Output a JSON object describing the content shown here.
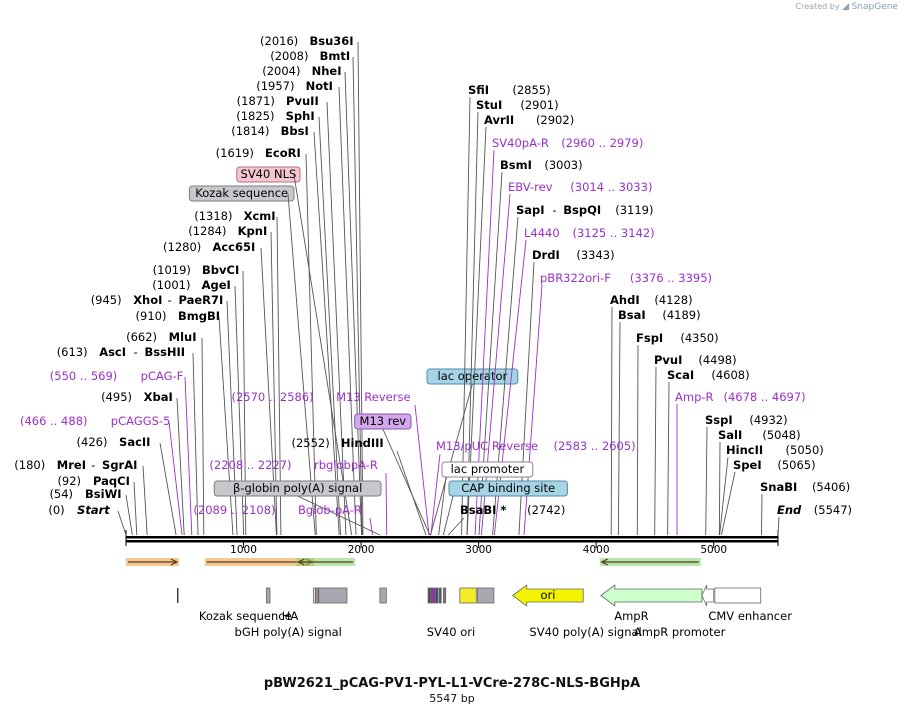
{
  "credit": {
    "prefix": "Created by",
    "brand": "SnapGene"
  },
  "map": {
    "name": "pBW2621_pCAG-PV1-PYL-L1-VCre-278C-NLS-BGHpA",
    "length_label": "5547 bp",
    "length": 5547,
    "ticks": [
      "1000",
      "2000",
      "3000",
      "4000",
      "5000"
    ],
    "tick_values": [
      1000,
      2000,
      3000,
      4000,
      5000
    ]
  },
  "left_labels": [
    {
      "kind": "site",
      "pos": "(2016)",
      "name": "Bsu36I",
      "site": 2016
    },
    {
      "kind": "site",
      "pos": "(2008)",
      "name": "BmtI",
      "site": 2008
    },
    {
      "kind": "site",
      "pos": "(2004)",
      "name": "NheI",
      "site": 2004
    },
    {
      "kind": "site",
      "pos": "(1957)",
      "name": "NotI",
      "site": 1957
    },
    {
      "kind": "site",
      "pos": "(1871)",
      "name": "PvuII",
      "site": 1871
    },
    {
      "kind": "site",
      "pos": "(1825)",
      "name": "SphI",
      "site": 1825
    },
    {
      "kind": "site",
      "pos": "(1814)",
      "name": "BbsI",
      "site": 1814
    },
    {
      "kind": "site",
      "pos": "(1619)",
      "name": "EcoRI",
      "site": 1619
    },
    {
      "kind": "feature",
      "name": "SV40 NLS",
      "style": "pink",
      "site": 1920
    },
    {
      "kind": "feature",
      "name": "Kozak sequence",
      "style": "gray",
      "site": 1610
    },
    {
      "kind": "site",
      "pos": "(1318)",
      "name": "XcmI",
      "site": 1318
    },
    {
      "kind": "site",
      "pos": "(1284)",
      "name": "KpnI",
      "site": 1284
    },
    {
      "kind": "site",
      "pos": "(1280)",
      "name": "Acc65I",
      "site": 1280
    },
    {
      "kind": "site",
      "pos": "(1019)",
      "name": "BbvCI",
      "site": 1019
    },
    {
      "kind": "site",
      "pos": "(1001)",
      "name": "AgeI",
      "site": 1001
    },
    {
      "kind": "site",
      "pos": "(945)",
      "name": "XhoI",
      "name2": "PaeR7I",
      "site": 945
    },
    {
      "kind": "site",
      "pos": "(910)",
      "name": "BmgBI",
      "site": 910
    },
    {
      "kind": "site",
      "pos": "(662)",
      "name": "MluI",
      "site": 662
    },
    {
      "kind": "site",
      "pos": "(613)",
      "name": "AscI",
      "name2": "BssHII",
      "site": 613
    },
    {
      "kind": "primer",
      "pos": "(550 .. 569)",
      "name": "pCAG-F",
      "site": 560
    },
    {
      "kind": "site",
      "pos": "(495)",
      "name": "XbaI",
      "site": 495
    },
    {
      "kind": "primer",
      "pos": "(466 .. 488)",
      "name": "pCAGGS-5",
      "site": 477
    },
    {
      "kind": "site",
      "pos": "(426)",
      "name": "SacII",
      "site": 426
    },
    {
      "kind": "site",
      "pos": "(180)",
      "name": "MreI",
      "name2": "SgrAI",
      "site": 180
    },
    {
      "kind": "site",
      "pos": "(92)",
      "name": "PaqCI",
      "site": 92
    },
    {
      "kind": "site",
      "pos": "(54)",
      "name": "BsiWI",
      "site": 54
    },
    {
      "kind": "site",
      "pos": "(0)",
      "name": "Start",
      "site": 0,
      "italic": true
    }
  ],
  "middle_labels": [
    {
      "kind": "feature",
      "name": "lac operator",
      "style": "blue",
      "site": 2590
    },
    {
      "kind": "primer",
      "pos": "(2570 .. 2586)",
      "name": "M13 Reverse",
      "site": 2578
    },
    {
      "kind": "feature",
      "name": "M13 rev",
      "style": "purple",
      "site": 2585
    },
    {
      "kind": "site",
      "pos": "(2552)",
      "name": "HindIII",
      "site": 2552
    },
    {
      "kind": "primer",
      "pos": "(2208 .. 2227)",
      "name": "rbglobpA-R",
      "site": 2218
    },
    {
      "kind": "feature",
      "name": "β-globin poly(A) signal",
      "style": "gray",
      "site": 2160
    },
    {
      "kind": "primer",
      "pos": "(2089 .. 2108)",
      "name": "Bglob-pA-R",
      "site": 2098
    }
  ],
  "right_labels": [
    {
      "kind": "site",
      "name": "SfiI",
      "pos": "(2855)",
      "site": 2855
    },
    {
      "kind": "site",
      "name": "StuI",
      "pos": "(2901)",
      "site": 2901
    },
    {
      "kind": "site",
      "name": "AvrII",
      "pos": "(2902)",
      "site": 2902
    },
    {
      "kind": "primer",
      "name": "SV40pA-R",
      "pos": "(2960 .. 2979)",
      "site": 2970
    },
    {
      "kind": "site",
      "name": "BsmI",
      "pos": "(3003)",
      "site": 3003
    },
    {
      "kind": "primer",
      "name": "EBV-rev",
      "pos": "(3014 .. 3033)",
      "site": 3024
    },
    {
      "kind": "site",
      "name": "SapI",
      "name2": "BspQI",
      "pos": "(3119)",
      "site": 3119
    },
    {
      "kind": "primer",
      "name": "L4440",
      "pos": "(3125 .. 3142)",
      "site": 3134
    },
    {
      "kind": "site",
      "name": "DrdI",
      "pos": "(3343)",
      "site": 3343
    },
    {
      "kind": "primer",
      "name": "pBR322ori-F",
      "pos": "(3376 .. 3395)",
      "site": 3386
    },
    {
      "kind": "site",
      "name": "AhdI",
      "pos": "(4128)",
      "site": 4128
    },
    {
      "kind": "site",
      "name": "BsaI",
      "pos": "(4189)",
      "site": 4189
    },
    {
      "kind": "site",
      "name": "FspI",
      "pos": "(4350)",
      "site": 4350
    },
    {
      "kind": "site",
      "name": "PvuI",
      "pos": "(4498)",
      "site": 4498
    },
    {
      "kind": "site",
      "name": "ScaI",
      "pos": "(4608)",
      "site": 4608
    },
    {
      "kind": "primer",
      "name": "Amp-R",
      "pos": "(4678 .. 4697)",
      "site": 4688
    },
    {
      "kind": "site",
      "name": "SspI",
      "pos": "(4932)",
      "site": 4932
    },
    {
      "kind": "site",
      "name": "SalI",
      "pos": "(5048)",
      "site": 5048
    },
    {
      "kind": "site",
      "name": "HincII",
      "pos": "(5050)",
      "site": 5050
    },
    {
      "kind": "site",
      "name": "SpeI",
      "pos": "(5065)",
      "site": 5065
    },
    {
      "kind": "site",
      "name": "SnaBI",
      "pos": "(5406)",
      "site": 5406
    },
    {
      "kind": "site",
      "name": "End",
      "pos": "(5547)",
      "site": 5547,
      "italic": true
    }
  ],
  "center_labels": [
    {
      "kind": "primer",
      "name": "M13/pUC Reverse",
      "pos": "(2583 .. 2605)",
      "site": 2594
    },
    {
      "kind": "feature",
      "name": "lac promoter",
      "style": "white",
      "site": 2660
    },
    {
      "kind": "feature",
      "name": "CAP binding site",
      "style": "blue",
      "site": 2700
    },
    {
      "kind": "site",
      "name": "BsaBI *",
      "pos": "(2742)",
      "site": 2742
    }
  ],
  "top_arrows": [
    {
      "start": 0,
      "end": 450,
      "color": "#e89b3a",
      "dir": "right"
    },
    {
      "start": 670,
      "end": 1600,
      "color": "#e89b3a",
      "dir": "right"
    },
    {
      "start": 1450,
      "end": 1950,
      "color": "#7dd16f",
      "dir": "left"
    },
    {
      "start": 4030,
      "end": 4890,
      "color": "#7dd16f",
      "dir": "left"
    }
  ],
  "features": [
    {
      "start": 440,
      "end": 452,
      "kind": "line"
    },
    {
      "start": 1195,
      "end": 1225,
      "kind": "box",
      "fill": "#a8a8b0"
    },
    {
      "start": 1595,
      "end": 1610,
      "kind": "box",
      "fill": "#ffd6e0"
    },
    {
      "start": 1615,
      "end": 1635,
      "kind": "box",
      "fill": "#9c9ca6"
    },
    {
      "start": 1640,
      "end": 1880,
      "kind": "box",
      "fill": "#a8a8b0"
    },
    {
      "start": 2160,
      "end": 2215,
      "kind": "box",
      "fill": "#a8a8b0"
    },
    {
      "start": 2570,
      "end": 2590,
      "kind": "box",
      "fill": "#4d4d4d"
    },
    {
      "start": 2592,
      "end": 2630,
      "kind": "box",
      "fill": "#8a3aa0"
    },
    {
      "start": 2635,
      "end": 2655,
      "kind": "box",
      "fill": "#2a4a8a"
    },
    {
      "start": 2665,
      "end": 2680,
      "kind": "box",
      "fill": "#555555"
    },
    {
      "start": 2700,
      "end": 2720,
      "kind": "box",
      "fill": "#777777"
    },
    {
      "start": 2840,
      "end": 2980,
      "kind": "box",
      "fill": "#f3ec2a"
    },
    {
      "start": 2990,
      "end": 3130,
      "kind": "box",
      "fill": "#a8a8b0"
    },
    {
      "start": 3290,
      "end": 3890,
      "kind": "arrow-left",
      "fill": "#f3f300"
    },
    {
      "start": 4040,
      "end": 4900,
      "kind": "arrow-left",
      "fill": "#ccffcc"
    },
    {
      "start": 4900,
      "end": 5000,
      "kind": "arrow-left",
      "fill": "#ffffff"
    },
    {
      "start": 5010,
      "end": 5400,
      "kind": "box",
      "fill": "#ffffff"
    }
  ],
  "feature_labels": [
    {
      "name": "ori",
      "site": 3590,
      "row": "inside"
    },
    {
      "name": "Kozak sequence",
      "site": 1015,
      "row": 1
    },
    {
      "name": "HA",
      "site": 1395,
      "row": 1
    },
    {
      "name": "bGH poly(A) signal",
      "site": 1380,
      "row": 2
    },
    {
      "name": "SV40 ori",
      "site": 2765,
      "row": 2
    },
    {
      "name": "SV40 poly(A) signal",
      "site": 3910,
      "row": 2
    },
    {
      "name": "AmpR",
      "site": 4300,
      "row": 1
    },
    {
      "name": "AmpR promoter",
      "site": 4710,
      "row": 2
    },
    {
      "name": "CMV enhancer",
      "site": 5310,
      "row": 1
    }
  ],
  "colors": {
    "site_text": "#000000",
    "primer_text": "#9b30c9",
    "primer_line": "#9b30c9",
    "site_line": "#555555",
    "backbone": "#000000",
    "feat_pink": "#f4c6d1",
    "feat_gray": "#c8c8cc",
    "feat_blue": "#a5d4e6",
    "feat_purple": "#d4a8ec",
    "feat_white": "#ffffff"
  }
}
